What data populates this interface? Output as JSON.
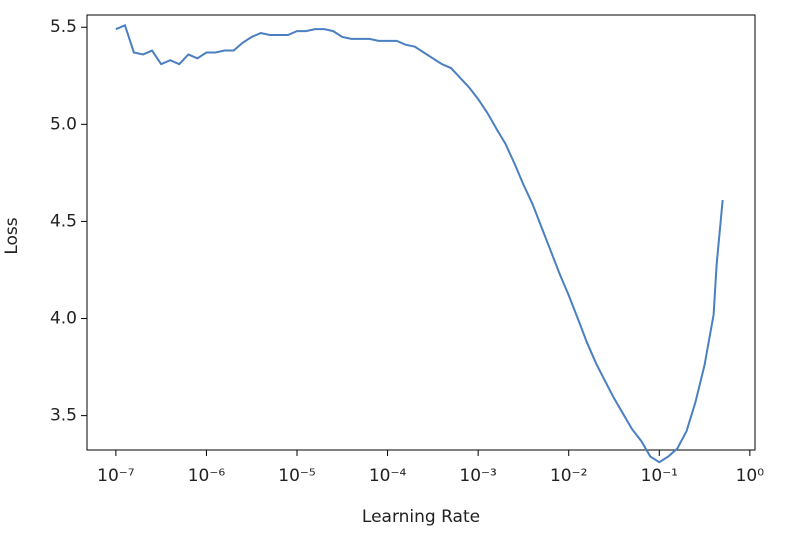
{
  "chart_data": {
    "type": "line",
    "xlabel": "Learning Rate",
    "ylabel": "Loss",
    "x": [
      1e-07,
      1.26e-07,
      1.58e-07,
      2e-07,
      2.51e-07,
      3.16e-07,
      3.98e-07,
      5.01e-07,
      6.31e-07,
      7.94e-07,
      1e-06,
      1.26e-06,
      1.58e-06,
      2e-06,
      2.51e-06,
      3.16e-06,
      3.98e-06,
      5.01e-06,
      6.31e-06,
      7.94e-06,
      1e-05,
      1.26e-05,
      1.58e-05,
      2e-05,
      2.51e-05,
      3.16e-05,
      3.98e-05,
      5.01e-05,
      6.31e-05,
      7.94e-05,
      0.0001,
      0.000126,
      0.000158,
      0.0002,
      0.000251,
      0.000316,
      0.000398,
      0.000501,
      0.000631,
      0.000794,
      0.001,
      0.00126,
      0.00158,
      0.002,
      0.00251,
      0.00316,
      0.00398,
      0.00501,
      0.00631,
      0.00794,
      0.01,
      0.0126,
      0.0158,
      0.02,
      0.0251,
      0.0316,
      0.0398,
      0.0501,
      0.0631,
      0.0794,
      0.1,
      0.126,
      0.158,
      0.2,
      0.251,
      0.316,
      0.398,
      0.43,
      0.501
    ],
    "values": [
      5.49,
      5.51,
      5.37,
      5.36,
      5.38,
      5.31,
      5.33,
      5.31,
      5.36,
      5.34,
      5.37,
      5.37,
      5.38,
      5.38,
      5.42,
      5.45,
      5.47,
      5.46,
      5.46,
      5.46,
      5.48,
      5.48,
      5.49,
      5.49,
      5.48,
      5.45,
      5.44,
      5.44,
      5.44,
      5.43,
      5.43,
      5.43,
      5.41,
      5.4,
      5.37,
      5.34,
      5.31,
      5.29,
      5.24,
      5.19,
      5.13,
      5.06,
      4.98,
      4.9,
      4.8,
      4.69,
      4.59,
      4.47,
      4.35,
      4.23,
      4.12,
      4.0,
      3.88,
      3.77,
      3.68,
      3.59,
      3.51,
      3.43,
      3.37,
      3.29,
      3.26,
      3.29,
      3.33,
      3.42,
      3.57,
      3.76,
      4.02,
      4.28,
      4.61
    ],
    "color": "#4a7fc1",
    "xscale": "log",
    "xlim": [
      4.8e-08,
      1.14
    ],
    "xticks": [
      {
        "value": 1e-07,
        "label": "10⁻⁷"
      },
      {
        "value": 1e-06,
        "label": "10⁻⁶"
      },
      {
        "value": 1e-05,
        "label": "10⁻⁵"
      },
      {
        "value": 0.0001,
        "label": "10⁻⁴"
      },
      {
        "value": 0.001,
        "label": "10⁻³"
      },
      {
        "value": 0.01,
        "label": "10⁻²"
      },
      {
        "value": 0.1,
        "label": "10⁻¹"
      },
      {
        "value": 1,
        "label": "10⁰"
      }
    ],
    "ylim": [
      3.323,
      5.563
    ],
    "yticks": [
      3.5,
      {
        "value": 4,
        "label": "4.0"
      },
      4.5,
      {
        "value": 5,
        "label": "5.0"
      },
      5.5
    ]
  }
}
